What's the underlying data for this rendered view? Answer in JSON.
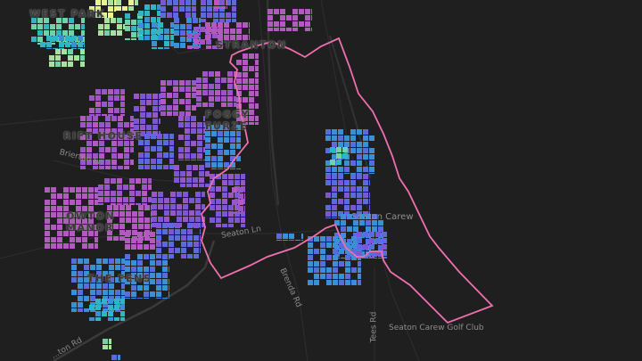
{
  "map": {
    "background": "#1f1f1f",
    "boundary_color": "#f06fb0",
    "palette": [
      "#e8f58a",
      "#a6e39a",
      "#6fd3a8",
      "#2fb5c3",
      "#3b8fd6",
      "#5a6be0",
      "#7b56d6",
      "#9a55c9",
      "#b25ac0"
    ],
    "neighbourhoods": [
      "WEST PARK",
      "STRANTON",
      "FOGGY",
      "FURZE",
      "RIFT HOUSE",
      "OWTON",
      "MANOR",
      "THE FENS"
    ],
    "roads": [
      "Brierton Ln",
      "Seaton Ln",
      "Brenda Rd",
      "Tees Rd",
      "...ton Rd"
    ],
    "places": [
      "Seaton Carew",
      "Seaton Carew Golf Club"
    ]
  }
}
